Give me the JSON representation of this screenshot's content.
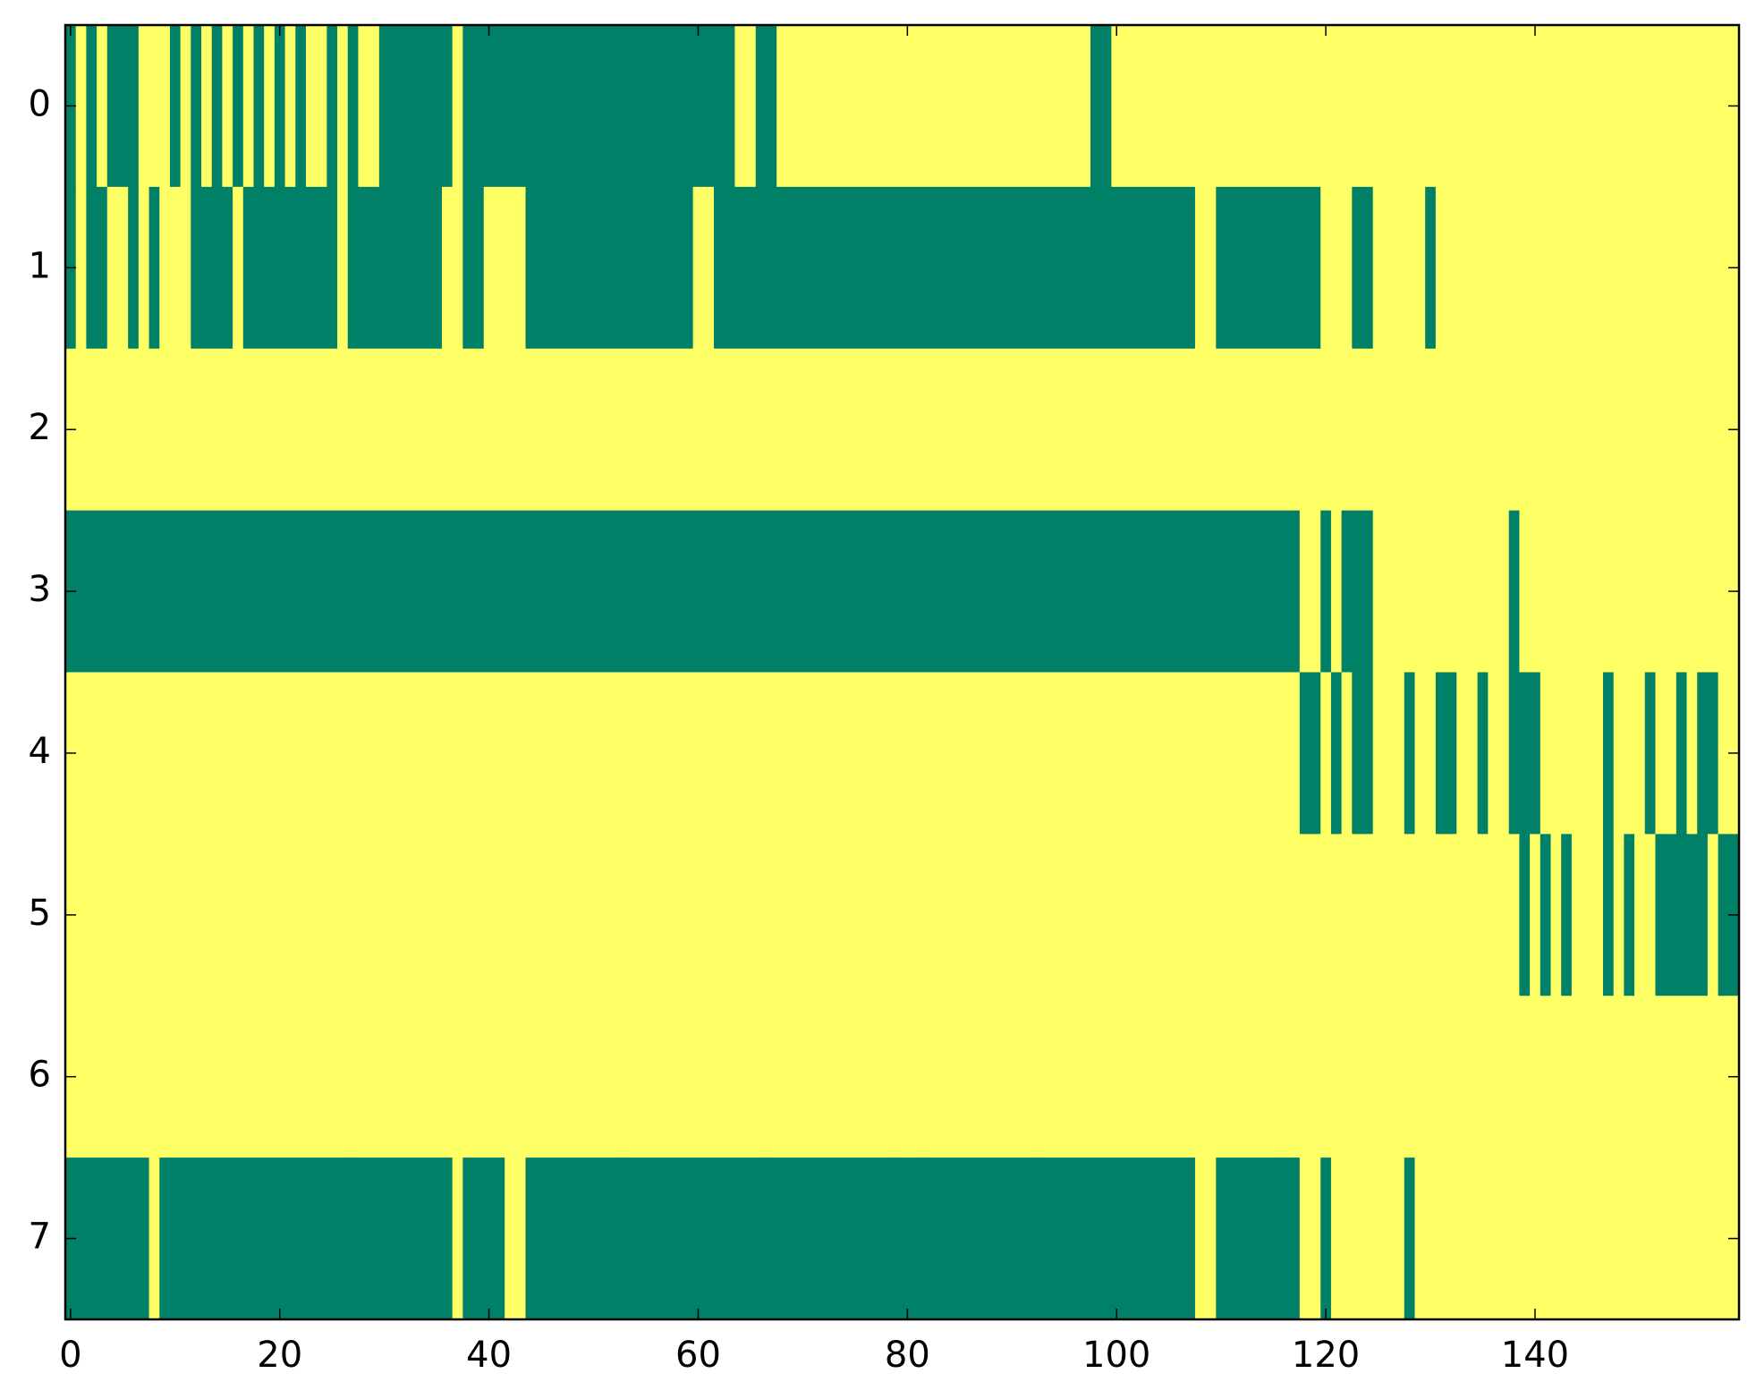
{
  "chart_data": {
    "type": "heatmap",
    "colors": [
      "#008066",
      "#ffff66"
    ],
    "clim": [
      0,
      1
    ],
    "xlim": [
      -0.5,
      159.5
    ],
    "ylim": [
      7.5,
      -0.5
    ],
    "xticks": [
      0,
      20,
      40,
      60,
      80,
      100,
      120,
      140
    ],
    "yticks": [
      0,
      1,
      2,
      3,
      4,
      5,
      6,
      7
    ],
    "z": [
      [
        0,
        1,
        0,
        1,
        0,
        0,
        0,
        1,
        1,
        1,
        0,
        1,
        0,
        1,
        0,
        1,
        0,
        1,
        0,
        1,
        0,
        1,
        0,
        1,
        1,
        0,
        1,
        0,
        1,
        1,
        0,
        0,
        0,
        0,
        0,
        0,
        0,
        1,
        0,
        0,
        0,
        0,
        0,
        0,
        0,
        0,
        0,
        0,
        0,
        0,
        0,
        0,
        0,
        0,
        0,
        0,
        0,
        0,
        0,
        0,
        0,
        0,
        0,
        0,
        1,
        1,
        0,
        0,
        1,
        1,
        1,
        1,
        1,
        1,
        1,
        1,
        1,
        1,
        1,
        1,
        1,
        1,
        1,
        1,
        1,
        1,
        1,
        1,
        1,
        1,
        1,
        1,
        1,
        1,
        1,
        1,
        1,
        1,
        0,
        0,
        1,
        1,
        1,
        1,
        1,
        1,
        1,
        1,
        1,
        1,
        1,
        1,
        1,
        1,
        1,
        1,
        1,
        1,
        1,
        1,
        1,
        1,
        1,
        1,
        1,
        1,
        1,
        1,
        1,
        1,
        1,
        1,
        1,
        1,
        1,
        1,
        1,
        1,
        1,
        1,
        1,
        1,
        1,
        1,
        1,
        1,
        1,
        1,
        1,
        1,
        1,
        1,
        1,
        1,
        1,
        1,
        1,
        1,
        1,
        1
      ],
      [
        0,
        1,
        0,
        0,
        1,
        1,
        0,
        1,
        0,
        1,
        1,
        1,
        0,
        0,
        0,
        0,
        1,
        0,
        0,
        0,
        0,
        0,
        0,
        0,
        0,
        0,
        1,
        0,
        0,
        0,
        0,
        0,
        0,
        0,
        0,
        0,
        1,
        1,
        0,
        0,
        1,
        1,
        1,
        1,
        0,
        0,
        0,
        0,
        0,
        0,
        0,
        0,
        0,
        0,
        0,
        0,
        0,
        0,
        0,
        0,
        1,
        1,
        0,
        0,
        0,
        0,
        0,
        0,
        0,
        0,
        0,
        0,
        0,
        0,
        0,
        0,
        0,
        0,
        0,
        0,
        0,
        0,
        0,
        0,
        0,
        0,
        0,
        0,
        0,
        0,
        0,
        0,
        0,
        0,
        0,
        0,
        0,
        0,
        0,
        0,
        0,
        0,
        0,
        0,
        0,
        0,
        0,
        0,
        1,
        1,
        0,
        0,
        0,
        0,
        0,
        0,
        0,
        0,
        0,
        0,
        1,
        1,
        1,
        0,
        0,
        1,
        1,
        1,
        1,
        1,
        0,
        1,
        1,
        1,
        1,
        1,
        1,
        1,
        1,
        1,
        1,
        1,
        1,
        1,
        1,
        1,
        1,
        1,
        1,
        1,
        1,
        1,
        1,
        1,
        1,
        1,
        1,
        1,
        1,
        1
      ],
      [
        1,
        1,
        1,
        1,
        1,
        1,
        1,
        1,
        1,
        1,
        1,
        1,
        1,
        1,
        1,
        1,
        1,
        1,
        1,
        1,
        1,
        1,
        1,
        1,
        1,
        1,
        1,
        1,
        1,
        1,
        1,
        1,
        1,
        1,
        1,
        1,
        1,
        1,
        1,
        1,
        1,
        1,
        1,
        1,
        1,
        1,
        1,
        1,
        1,
        1,
        1,
        1,
        1,
        1,
        1,
        1,
        1,
        1,
        1,
        1,
        1,
        1,
        1,
        1,
        1,
        1,
        1,
        1,
        1,
        1,
        1,
        1,
        1,
        1,
        1,
        1,
        1,
        1,
        1,
        1,
        1,
        1,
        1,
        1,
        1,
        1,
        1,
        1,
        1,
        1,
        1,
        1,
        1,
        1,
        1,
        1,
        1,
        1,
        1,
        1,
        1,
        1,
        1,
        1,
        1,
        1,
        1,
        1,
        1,
        1,
        1,
        1,
        1,
        1,
        1,
        1,
        1,
        1,
        1,
        1,
        1,
        1,
        1,
        1,
        1,
        1,
        1,
        1,
        1,
        1,
        1,
        1,
        1,
        1,
        1,
        1,
        1,
        1,
        1,
        1,
        1,
        1,
        1,
        1,
        1,
        1,
        1,
        1,
        1,
        1,
        1,
        1,
        1,
        1,
        1,
        1,
        1,
        1,
        1,
        1
      ],
      [
        0,
        0,
        0,
        0,
        0,
        0,
        0,
        0,
        0,
        0,
        0,
        0,
        0,
        0,
        0,
        0,
        0,
        0,
        0,
        0,
        0,
        0,
        0,
        0,
        0,
        0,
        0,
        0,
        0,
        0,
        0,
        0,
        0,
        0,
        0,
        0,
        0,
        0,
        0,
        0,
        0,
        0,
        0,
        0,
        0,
        0,
        0,
        0,
        0,
        0,
        0,
        0,
        0,
        0,
        0,
        0,
        0,
        0,
        0,
        0,
        0,
        0,
        0,
        0,
        0,
        0,
        0,
        0,
        0,
        0,
        0,
        0,
        0,
        0,
        0,
        0,
        0,
        0,
        0,
        0,
        0,
        0,
        0,
        0,
        0,
        0,
        0,
        0,
        0,
        0,
        0,
        0,
        0,
        0,
        0,
        0,
        0,
        0,
        0,
        0,
        0,
        0,
        0,
        0,
        0,
        0,
        0,
        0,
        0,
        0,
        0,
        0,
        0,
        0,
        0,
        0,
        0,
        0,
        1,
        1,
        0,
        1,
        0,
        0,
        0,
        1,
        1,
        1,
        1,
        1,
        1,
        1,
        1,
        1,
        1,
        1,
        1,
        1,
        0,
        1,
        1,
        1,
        1,
        1,
        1,
        1,
        1,
        1,
        1,
        1,
        1,
        1,
        1,
        1,
        1,
        1,
        1,
        1,
        1,
        1
      ],
      [
        1,
        1,
        1,
        1,
        1,
        1,
        1,
        1,
        1,
        1,
        1,
        1,
        1,
        1,
        1,
        1,
        1,
        1,
        1,
        1,
        1,
        1,
        1,
        1,
        1,
        1,
        1,
        1,
        1,
        1,
        1,
        1,
        1,
        1,
        1,
        1,
        1,
        1,
        1,
        1,
        1,
        1,
        1,
        1,
        1,
        1,
        1,
        1,
        1,
        1,
        1,
        1,
        1,
        1,
        1,
        1,
        1,
        1,
        1,
        1,
        1,
        1,
        1,
        1,
        1,
        1,
        1,
        1,
        1,
        1,
        1,
        1,
        1,
        1,
        1,
        1,
        1,
        1,
        1,
        1,
        1,
        1,
        1,
        1,
        1,
        1,
        1,
        1,
        1,
        1,
        1,
        1,
        1,
        1,
        1,
        1,
        1,
        1,
        1,
        1,
        1,
        1,
        1,
        1,
        1,
        1,
        1,
        1,
        1,
        1,
        1,
        1,
        1,
        1,
        1,
        1,
        1,
        1,
        0,
        0,
        1,
        0,
        1,
        0,
        0,
        1,
        1,
        1,
        0,
        1,
        1,
        0,
        0,
        1,
        1,
        0,
        1,
        1,
        0,
        0,
        0,
        1,
        1,
        1,
        1,
        1,
        1,
        0,
        1,
        1,
        1,
        0,
        1,
        1,
        0,
        1,
        0,
        0,
        1,
        1
      ],
      [
        1,
        1,
        1,
        1,
        1,
        1,
        1,
        1,
        1,
        1,
        1,
        1,
        1,
        1,
        1,
        1,
        1,
        1,
        1,
        1,
        1,
        1,
        1,
        1,
        1,
        1,
        1,
        1,
        1,
        1,
        1,
        1,
        1,
        1,
        1,
        1,
        1,
        1,
        1,
        1,
        1,
        1,
        1,
        1,
        1,
        1,
        1,
        1,
        1,
        1,
        1,
        1,
        1,
        1,
        1,
        1,
        1,
        1,
        1,
        1,
        1,
        1,
        1,
        1,
        1,
        1,
        1,
        1,
        1,
        1,
        1,
        1,
        1,
        1,
        1,
        1,
        1,
        1,
        1,
        1,
        1,
        1,
        1,
        1,
        1,
        1,
        1,
        1,
        1,
        1,
        1,
        1,
        1,
        1,
        1,
        1,
        1,
        1,
        1,
        1,
        1,
        1,
        1,
        1,
        1,
        1,
        1,
        1,
        1,
        1,
        1,
        1,
        1,
        1,
        1,
        1,
        1,
        1,
        1,
        1,
        1,
        1,
        1,
        1,
        1,
        1,
        1,
        1,
        1,
        1,
        1,
        1,
        1,
        1,
        1,
        1,
        1,
        1,
        1,
        0,
        1,
        0,
        1,
        0,
        1,
        1,
        1,
        0,
        1,
        0,
        1,
        1,
        0,
        0,
        0,
        0,
        0,
        1,
        0,
        0
      ],
      [
        1,
        1,
        1,
        1,
        1,
        1,
        1,
        1,
        1,
        1,
        1,
        1,
        1,
        1,
        1,
        1,
        1,
        1,
        1,
        1,
        1,
        1,
        1,
        1,
        1,
        1,
        1,
        1,
        1,
        1,
        1,
        1,
        1,
        1,
        1,
        1,
        1,
        1,
        1,
        1,
        1,
        1,
        1,
        1,
        1,
        1,
        1,
        1,
        1,
        1,
        1,
        1,
        1,
        1,
        1,
        1,
        1,
        1,
        1,
        1,
        1,
        1,
        1,
        1,
        1,
        1,
        1,
        1,
        1,
        1,
        1,
        1,
        1,
        1,
        1,
        1,
        1,
        1,
        1,
        1,
        1,
        1,
        1,
        1,
        1,
        1,
        1,
        1,
        1,
        1,
        1,
        1,
        1,
        1,
        1,
        1,
        1,
        1,
        1,
        1,
        1,
        1,
        1,
        1,
        1,
        1,
        1,
        1,
        1,
        1,
        1,
        1,
        1,
        1,
        1,
        1,
        1,
        1,
        1,
        1,
        1,
        1,
        1,
        1,
        1,
        1,
        1,
        1,
        1,
        1,
        1,
        1,
        1,
        1,
        1,
        1,
        1,
        1,
        1,
        1,
        1,
        1,
        1,
        1,
        1,
        1,
        1,
        1,
        1,
        1,
        1,
        1,
        1,
        1,
        1,
        1,
        1,
        1,
        1,
        1
      ],
      [
        0,
        0,
        0,
        0,
        0,
        0,
        0,
        0,
        1,
        0,
        0,
        0,
        0,
        0,
        0,
        0,
        0,
        0,
        0,
        0,
        0,
        0,
        0,
        0,
        0,
        0,
        0,
        0,
        0,
        0,
        0,
        0,
        0,
        0,
        0,
        0,
        0,
        1,
        0,
        0,
        0,
        0,
        1,
        1,
        0,
        0,
        0,
        0,
        0,
        0,
        0,
        0,
        0,
        0,
        0,
        0,
        0,
        0,
        0,
        0,
        0,
        0,
        0,
        0,
        0,
        0,
        0,
        0,
        0,
        0,
        0,
        0,
        0,
        0,
        0,
        0,
        0,
        0,
        0,
        0,
        0,
        0,
        0,
        0,
        0,
        0,
        0,
        0,
        0,
        0,
        0,
        0,
        0,
        0,
        0,
        0,
        0,
        0,
        0,
        0,
        0,
        0,
        0,
        0,
        0,
        0,
        0,
        0,
        1,
        1,
        0,
        0,
        0,
        0,
        0,
        0,
        0,
        0,
        1,
        1,
        0,
        1,
        1,
        1,
        1,
        1,
        1,
        1,
        0,
        1,
        1,
        1,
        1,
        1,
        1,
        1,
        1,
        1,
        1,
        1,
        1,
        1,
        1,
        1,
        1,
        1,
        1,
        1,
        1,
        1,
        1,
        1,
        1,
        1,
        1,
        1,
        1,
        1,
        1,
        1
      ]
    ]
  }
}
